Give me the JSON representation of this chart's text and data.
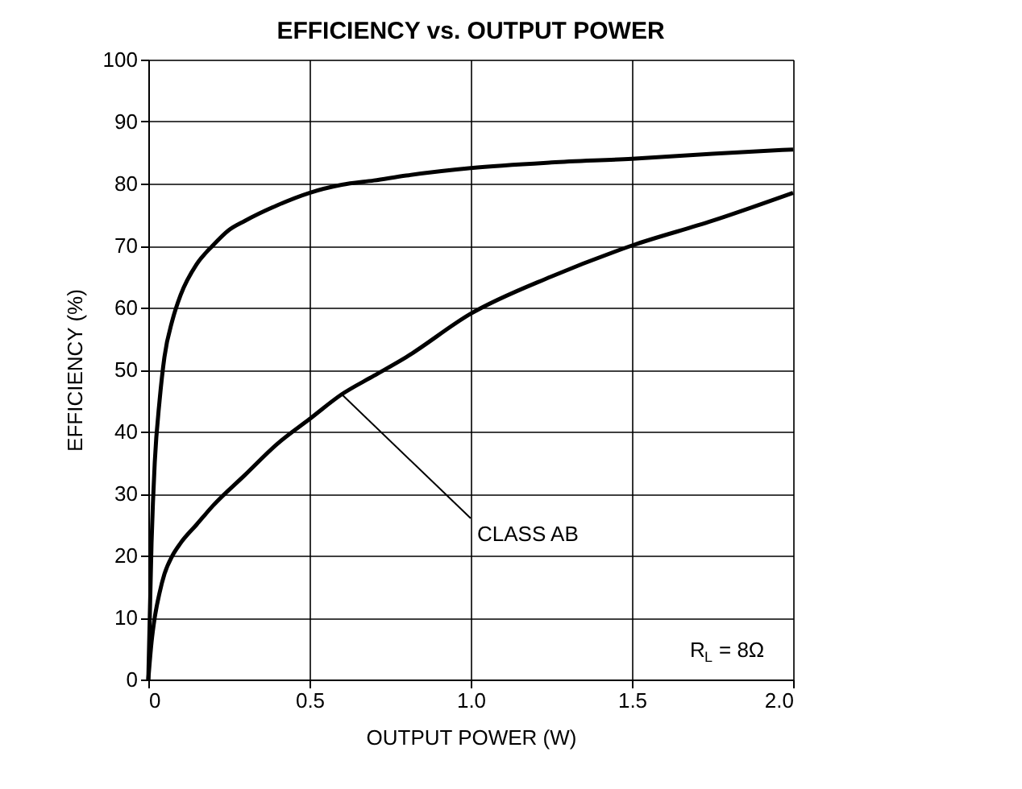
{
  "chart_data": {
    "type": "line",
    "title": "EFFICIENCY vs. OUTPUT POWER",
    "xlabel": "OUTPUT POWER (W)",
    "ylabel": "EFFICIENCY (%)",
    "series": [
      {
        "color": "#000000",
        "x": [
          0,
          0.01,
          0.02,
          0.035,
          0.05,
          0.075,
          0.1,
          0.15,
          0.2,
          0.25,
          0.3,
          0.4,
          0.5,
          0.6,
          0.7,
          0.8,
          1.0,
          1.25,
          1.5,
          1.75,
          2.0
        ],
        "values": [
          0,
          22,
          35,
          45,
          52,
          58,
          62,
          67,
          70,
          72.5,
          74,
          76.5,
          78.5,
          79.8,
          80.5,
          81.3,
          82.5,
          83.4,
          84,
          84.8,
          85.5
        ]
      },
      {
        "name": "CLASS AB",
        "color": "#000000",
        "x": [
          0,
          0.01,
          0.02,
          0.035,
          0.05,
          0.075,
          0.1,
          0.15,
          0.2,
          0.3,
          0.4,
          0.5,
          0.6,
          0.7,
          0.8,
          1.0,
          1.25,
          1.5,
          1.75,
          2.0
        ],
        "values": [
          0,
          6,
          10,
          14,
          17,
          20,
          22,
          25,
          28,
          33,
          38,
          42,
          46,
          49,
          52,
          59,
          65,
          70,
          74,
          78.5
        ]
      }
    ],
    "xlim": [
      0,
      2
    ],
    "xticks": [
      0,
      {
        "value": 0.5,
        "label": "0.5"
      },
      {
        "value": 1,
        "label": "1.0"
      },
      {
        "value": 1.5,
        "label": "1.5"
      },
      {
        "value": 2,
        "label": "2.0"
      }
    ],
    "ylim": [
      0,
      100
    ],
    "yticks": [
      0,
      10,
      20,
      30,
      40,
      50,
      60,
      70,
      80,
      90,
      100
    ],
    "grid": true,
    "marker": "none",
    "line_style": "solid",
    "annotations": [
      "R$_{L}$ = 8Ω"
    ]
  }
}
